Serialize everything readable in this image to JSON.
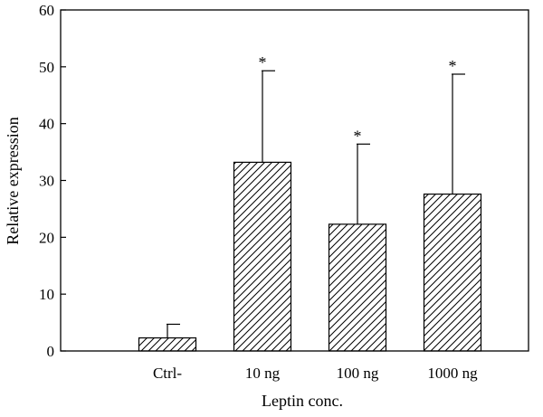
{
  "chart_data": {
    "type": "bar",
    "title": "",
    "xlabel": "Leptin conc.",
    "ylabel": "Relative expression",
    "ylim": [
      0,
      60
    ],
    "yticks": [
      0,
      10,
      20,
      30,
      40,
      50,
      60
    ],
    "categories": [
      "Ctrl-",
      "10 ng",
      "100 ng",
      "1000 ng"
    ],
    "values": [
      2.3,
      33.2,
      22.3,
      27.6
    ],
    "error_upper": [
      4.7,
      49.3,
      36.4,
      48.7
    ],
    "significance": [
      "",
      "*",
      "*",
      "*"
    ],
    "fill_pattern": "diagonal-hatch",
    "colors": {
      "bar_stroke": "#000000",
      "hatch": "#000000",
      "background": "#ffffff"
    }
  }
}
